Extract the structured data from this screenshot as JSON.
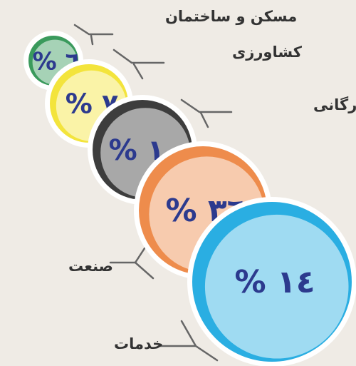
{
  "chart_data": {
    "type": "bubble",
    "categories": [
      "مسکن و ساختمان",
      "کشاورزی",
      "بازرگانی",
      "صنعت",
      "خدمات"
    ],
    "values": [
      6,
      7,
      10,
      36,
      14
    ],
    "value_labels": [
      "% ٦",
      "% ٧",
      "% ١٠",
      "% ٣٦",
      "% ١٤"
    ],
    "colors": [
      "#3a9a5c",
      "#f3e43c",
      "#3d3d3d",
      "#ee8c4c",
      "#2aaee2"
    ]
  }
}
